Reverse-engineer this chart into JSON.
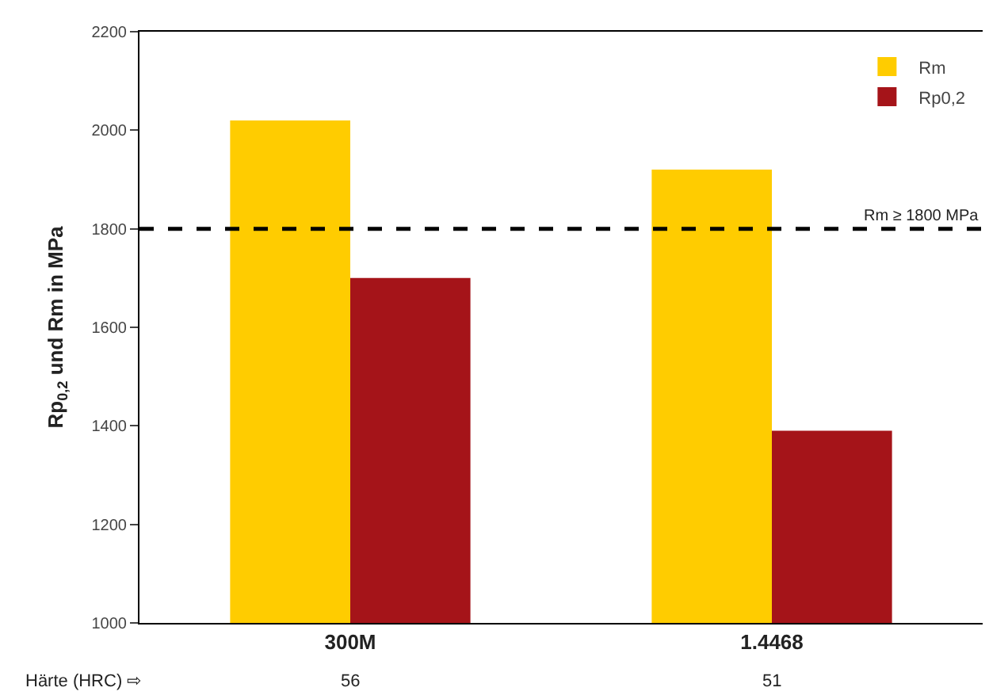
{
  "chart_data": {
    "type": "bar",
    "ylabel": "Rp$_{0,2}$ und Rm in MPa",
    "categories": [
      "300M",
      "1.4468"
    ],
    "series": [
      {
        "name": "Rm",
        "color": "#ffcc00",
        "values": [
          2020,
          1920
        ]
      },
      {
        "name": "Rp0,2",
        "color": "#a51419",
        "values": [
          1700,
          1390
        ]
      }
    ],
    "ylim": [
      1000,
      2200
    ],
    "yticks": [
      1000,
      1200,
      1400,
      1600,
      1800,
      2000,
      2200
    ],
    "grid": false,
    "legend": "top right",
    "ref_lines": [
      {
        "axis": "y",
        "value": 1800,
        "label": "Rm ≥ 1800 MPa",
        "color": "#000000",
        "line_style": "dashed"
      }
    ],
    "annotations": [
      "Härte (HRC) ⇨",
      "56",
      "51"
    ]
  }
}
